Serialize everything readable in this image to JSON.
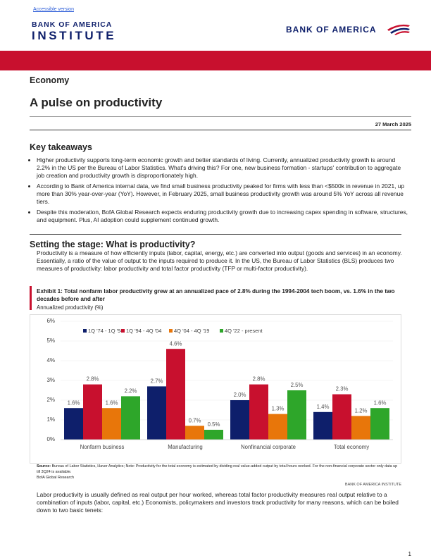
{
  "header": {
    "accessible_link": "Accessible version",
    "logo_left_top": "BANK OF AMERICA",
    "logo_left_bottom": "INSTITUTE",
    "logo_right": "BANK OF AMERICA"
  },
  "section": "Economy",
  "title": "A pulse on productivity",
  "date": "27 March 2025",
  "key_takeaways": {
    "heading": "Key takeaways",
    "bullets": [
      "Higher productivity supports long-term economic growth and better standards of living. Currently, annualized productivity growth is around 2.2% in the US per the Bureau of Labor Statistics. What's driving this? For one, new business formation - startups' contribution to aggregate job creation and productivity growth is disproportionately high.",
      "According to Bank of America internal data, we find small business productivity peaked for firms with less than <$500k in revenue in 2021, up more than 30% year-over-year (YoY). However, in February 2025, small business productivity growth was around 5% YoY across all revenue tiers.",
      "Despite this moderation, BofA Global Research expects enduring productivity growth due to increasing capex spending in software, structures, and equipment. Plus, AI adoption could supplement continued growth."
    ]
  },
  "setting": {
    "heading": "Setting the stage: What is productivity?",
    "paragraph": "Productivity is a measure of how efficiently inputs (labor, capital, energy, etc.) are converted into output (goods and services) in an economy. Essentially, a ratio of the value of output to the inputs required to produce it. In the US, the Bureau of Labor Statistics (BLS) produces two measures of productivity: labor productivity and total factor productivity (TFP or multi-factor productivity)."
  },
  "chart_data": {
    "type": "bar",
    "title": "Exhibit 1: Total nonfarm labor productivity grew at an annualized pace of 2.8% during the 1994-2004 tech boom, vs. 1.6% in the two decades before and after",
    "ylabel": "Annualized productivity (%)",
    "categories": [
      "Nonfarm business",
      "Manufacturing",
      "Nonfinancial corporate",
      "Total economy"
    ],
    "series": [
      {
        "name": "1Q '74 - 1Q '94",
        "color": "#0e1f6b",
        "values": [
          1.6,
          2.7,
          2.0,
          1.4
        ],
        "value_labels": [
          "1.6%",
          "2.7%",
          "2.0%",
          "1.4%"
        ]
      },
      {
        "name": "1Q '94 - 4Q '04",
        "color": "#c8102e",
        "values": [
          2.8,
          4.6,
          2.8,
          2.3
        ],
        "value_labels": [
          "2.8%",
          "4.6%",
          "2.8%",
          "2.3%"
        ]
      },
      {
        "name": "4Q '04 - 4Q '19",
        "color": "#e8760a",
        "values": [
          1.6,
          0.7,
          1.3,
          1.2
        ],
        "value_labels": [
          "1.6%",
          "0.7%",
          "1.3%",
          "1.2%"
        ]
      },
      {
        "name": "4Q '22 - present",
        "color": "#2ea62a",
        "values": [
          2.2,
          0.5,
          2.5,
          1.6
        ],
        "value_labels": [
          "2.2%",
          "0.5%",
          "2.5%",
          "1.6%"
        ]
      }
    ],
    "ylim": [
      0,
      6
    ],
    "yticks": [
      {
        "value": 0,
        "label": "0%"
      },
      {
        "value": 1,
        "label": "1%"
      },
      {
        "value": 2,
        "label": "2%"
      },
      {
        "value": 3,
        "label": "3%"
      },
      {
        "value": 4,
        "label": "4%"
      },
      {
        "value": 5,
        "label": "5%"
      },
      {
        "value": 6,
        "label": "6%"
      }
    ],
    "grid": true,
    "legend": "top",
    "source_label": "Source:",
    "source_text": "Bureau of Labor Statistics, Haver Analytics; Note: Productivity for the total economy is estimated by dividing real value-added output by total hours worked. For the non-financial corporate sector only data up till 3Q24 is available.",
    "source_org": "BofA Global Research",
    "brand": "BANK OF AMERICA INSTITUTE"
  },
  "closing_paragraph": "Labor productivity is usually defined as real output per hour worked, whereas total factor productivity measures real output relative to a combination of inputs (labor, capital, etc.) Economists, policymakers and investors track productivity for many reasons, which can be boiled down to two basic tenets:",
  "page_number": "1"
}
